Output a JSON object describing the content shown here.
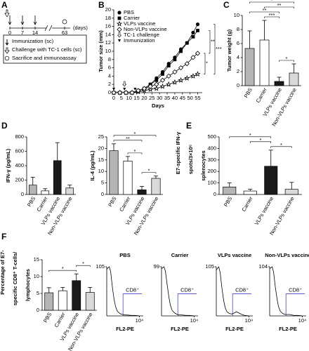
{
  "panel_labels": [
    "A",
    "B",
    "C",
    "D",
    "E",
    "F"
  ],
  "schedule": {
    "days": [
      0,
      7,
      14,
      63
    ],
    "unit": "(days)",
    "legend": [
      "Immunization (sc)",
      "Challenge with TC-1 cells (sc)",
      "Sacrifice and immunoassay"
    ]
  },
  "chart_data": [
    {
      "type": "line",
      "ylabel": [
        "Tumor size (mm)"
      ],
      "xlabel": "Days",
      "x": [
        0,
        4,
        8,
        12,
        16,
        20,
        24,
        28,
        32,
        36,
        40,
        44,
        48,
        52,
        55
      ],
      "xlim": [
        0,
        58
      ],
      "xticks": [
        0,
        5,
        10,
        15,
        20,
        25,
        30,
        35,
        40,
        45,
        50,
        55
      ],
      "ylim": [
        0,
        20
      ],
      "yticks": [
        0,
        2,
        4,
        6,
        8,
        10,
        12,
        14,
        16,
        18,
        20
      ],
      "series": [
        {
          "name": "PBS",
          "color": "#000000",
          "marker": "circle",
          "values": [
            0,
            0,
            0,
            0,
            0.5,
            1,
            2,
            3.5,
            5,
            7,
            8.5,
            10.5,
            12,
            14.5,
            16.5
          ]
        },
        {
          "name": "Carrier",
          "color": "#000000",
          "marker": "square",
          "values": [
            0,
            0,
            0,
            0,
            0.5,
            1,
            2,
            3,
            4.5,
            6.5,
            8,
            10,
            12,
            13.5,
            15
          ]
        },
        {
          "name": "VLPs vaccine",
          "color": "#000000",
          "marker": "star",
          "values": [
            0,
            0,
            0,
            0,
            0.2,
            0.5,
            0.8,
            1,
            1.5,
            2,
            2.5,
            3,
            3.5,
            4,
            4.5
          ]
        },
        {
          "name": "Non-VLPs vaccine",
          "color": "#000000",
          "marker": "diamond",
          "values": [
            0,
            0,
            0,
            0,
            0.5,
            1,
            1.5,
            2,
            3,
            4,
            5,
            6,
            7,
            8.5,
            9.5
          ]
        }
      ],
      "events": [
        {
          "name": "TC-1 challenge",
          "marker": "open-arrow",
          "days": [
            7
          ]
        },
        {
          "name": "Immunization",
          "marker": "arrow",
          "days": [
            0,
            7,
            14
          ]
        }
      ],
      "significance": [
        {
          "label": "*",
          "pair": [
            "Non-VLPs vaccine",
            "VLPs vaccine"
          ]
        },
        {
          "label": "**",
          "pair": [
            "Carrier",
            "Non-VLPs vaccine"
          ]
        },
        {
          "label": "***",
          "pair": [
            "PBS",
            "VLPs vaccine"
          ]
        }
      ]
    },
    {
      "type": "bar",
      "ylabel": [
        "Tumor weight (g)"
      ],
      "categories": [
        "PBS",
        "Carrier",
        "VLPs vaccine",
        "Non-VLPs vaccine"
      ],
      "colors": [
        "#b5b5b5",
        "#ffffff",
        "#1a1a1a",
        "#d9d9d9"
      ],
      "values": [
        5.3,
        6.5,
        0.6,
        1.8
      ],
      "errors": [
        2.5,
        2.8,
        0.6,
        1.3
      ],
      "ylim": [
        0,
        10
      ],
      "yticks": [
        0,
        2,
        4,
        6,
        8,
        10
      ],
      "significance": [
        {
          "label": "*",
          "pair": [
            "VLPs vaccine",
            "Non-VLPs vaccine"
          ]
        },
        {
          "label": "***",
          "pair": [
            "Carrier",
            "VLPs vaccine"
          ]
        },
        {
          "label": "**",
          "pair": [
            "PBS",
            "VLPs vaccine"
          ]
        },
        {
          "label": "**",
          "pair": [
            "Carrier",
            "Non-VLPs vaccine"
          ]
        },
        {
          "label": "*",
          "pair": [
            "PBS",
            "Non-VLPs vaccine"
          ]
        }
      ]
    },
    {
      "type": "bar",
      "ylabel": [
        "IFN-γ (pg/mL)"
      ],
      "categories": [
        "PBS",
        "Carrier",
        "VLPs vaccine",
        "Non-VLPs vaccine"
      ],
      "colors": [
        "#b5b5b5",
        "#ffffff",
        "#1a1a1a",
        "#d9d9d9"
      ],
      "values": [
        130,
        50,
        470,
        90
      ],
      "errors": [
        110,
        30,
        250,
        40
      ],
      "ylim": [
        0,
        800
      ],
      "yticks": [
        0,
        200,
        400,
        600,
        800
      ],
      "significance": []
    },
    {
      "type": "bar",
      "ylabel": [
        "IL-4 (pg/mL)"
      ],
      "categories": [
        "PBS",
        "Carrier",
        "VLPs vaccine",
        "Non-VLPs vaccine"
      ],
      "colors": [
        "#b5b5b5",
        "#ffffff",
        "#1a1a1a",
        "#d9d9d9"
      ],
      "values": [
        19,
        14.5,
        2,
        7
      ],
      "errors": [
        3,
        2,
        1.5,
        1
      ],
      "ylim": [
        0,
        25
      ],
      "yticks": [
        0,
        5,
        10,
        15,
        20,
        25
      ],
      "significance": [
        {
          "label": "*",
          "pair": [
            "VLPs vaccine",
            "Non-VLPs vaccine"
          ]
        },
        {
          "label": "*",
          "pair": [
            "Carrier",
            "VLPs vaccine"
          ]
        },
        {
          "label": "**",
          "pair": [
            "PBS",
            "VLPs vaccine"
          ]
        },
        {
          "label": "*",
          "pair": [
            "PBS",
            "Non-VLPs vaccine"
          ]
        }
      ]
    },
    {
      "type": "bar",
      "ylabel": [
        "E7-specific IFN-γ",
        "spots/3×10⁵",
        "splenocytes"
      ],
      "categories": [
        "PBS",
        "Carrier",
        "VLPs vaccine",
        "Non-VLPs vaccine"
      ],
      "colors": [
        "#b5b5b5",
        "#ffffff",
        "#1a1a1a",
        "#d9d9d9"
      ],
      "values": [
        65,
        30,
        245,
        45
      ],
      "errors": [
        35,
        15,
        140,
        60
      ],
      "ylim": [
        0,
        500
      ],
      "yticks": [
        0,
        100,
        200,
        300,
        400,
        500
      ],
      "significance": [
        {
          "label": "*",
          "pair": [
            "VLPs vaccine",
            "Non-VLPs vaccine"
          ]
        },
        {
          "label": "*",
          "pair": [
            "Carrier",
            "VLPs vaccine"
          ]
        },
        {
          "label": "*",
          "pair": [
            "PBS",
            "VLPs vaccine"
          ]
        }
      ]
    },
    {
      "type": "bar",
      "ylabel": [
        "Percentage of E7-",
        "specific CD8⁺ T-cells/",
        "lymphocytes"
      ],
      "categories": [
        "PBS",
        "Carrier",
        "VLPs vaccine",
        "Non-VLPs vaccine"
      ],
      "colors": [
        "#b5b5b5",
        "#ffffff",
        "#1a1a1a",
        "#d9d9d9"
      ],
      "values": [
        5.2,
        5.8,
        8.8,
        5.3
      ],
      "errors": [
        1.5,
        1,
        2,
        1.5
      ],
      "ylim": [
        0,
        15
      ],
      "yticks": [
        0,
        5,
        10,
        15
      ],
      "significance": [
        {
          "label": "*",
          "pair": [
            "PBS",
            "VLPs vaccine"
          ]
        },
        {
          "label": "*",
          "pair": [
            "VLPs vaccine",
            "Non-VLPs vaccine"
          ]
        }
      ]
    },
    {
      "type": "flow",
      "title": "PBS",
      "color": "#000000",
      "log_x": true,
      "x": [
        1,
        2,
        3,
        5,
        8,
        12,
        20,
        40,
        80,
        150,
        300,
        1000,
        3000,
        10000
      ],
      "values": [
        100,
        105,
        95,
        60,
        35,
        20,
        10,
        5,
        3,
        2,
        2,
        1,
        1,
        0
      ],
      "xlim": [
        1,
        30000
      ],
      "ylim": [
        0,
        105
      ],
      "yticks": [
        105
      ],
      "xticks": [
        {
          "value": 10000,
          "label": "10⁴"
        }
      ],
      "xlabel": "FL2-PE",
      "gate": {
        "label": "CD8⁺",
        "range": [
          100,
          20000
        ],
        "color": "#5b5bd6"
      }
    },
    {
      "type": "flow",
      "title": "Carrier",
      "color": "#000000",
      "log_x": true,
      "x": [
        1,
        2,
        3,
        5,
        8,
        12,
        20,
        40,
        80,
        150,
        300,
        1000,
        3000,
        10000
      ],
      "values": [
        95,
        99,
        90,
        62,
        38,
        22,
        11,
        6,
        3,
        2,
        2,
        1,
        1,
        0
      ],
      "xlim": [
        1,
        30000
      ],
      "ylim": [
        0,
        99
      ],
      "yticks": [
        99
      ],
      "xticks": [
        {
          "value": 10000,
          "label": "10⁴"
        }
      ],
      "xlabel": "FL2-PE",
      "gate": {
        "label": "CD8⁺",
        "range": [
          100,
          20000
        ],
        "color": "#5b5bd6"
      }
    },
    {
      "type": "flow",
      "title": "VLPs vaccine",
      "color": "#000000",
      "log_x": true,
      "x": [
        1,
        2,
        3,
        5,
        8,
        12,
        20,
        40,
        80,
        150,
        300,
        1000,
        3000,
        10000
      ],
      "values": [
        98,
        105,
        92,
        58,
        33,
        18,
        9,
        5,
        4,
        6,
        9,
        4,
        1,
        0
      ],
      "xlim": [
        1,
        30000
      ],
      "ylim": [
        0,
        105
      ],
      "yticks": [
        105
      ],
      "xticks": [
        {
          "value": 10000,
          "label": "10⁴"
        }
      ],
      "xlabel": "FL2-PE",
      "gate": {
        "label": "CD8⁺",
        "range": [
          100,
          20000
        ],
        "color": "#5b5bd6"
      }
    },
    {
      "type": "flow",
      "title": "Non-VLPs vaccine",
      "color": "#000000",
      "log_x": true,
      "x": [
        1,
        2,
        3,
        5,
        8,
        12,
        20,
        40,
        80,
        150,
        300,
        1000,
        3000,
        10000
      ],
      "values": [
        100,
        104,
        93,
        60,
        36,
        20,
        10,
        5,
        3,
        3,
        3,
        1,
        1,
        0
      ],
      "xlim": [
        1,
        30000
      ],
      "ylim": [
        0,
        104
      ],
      "yticks": [
        104
      ],
      "xticks": [
        {
          "value": 10000,
          "label": "10⁴"
        }
      ],
      "xlabel": "FL2-PE",
      "gate": {
        "label": "CD8⁺",
        "range": [
          100,
          20000
        ],
        "color": "#5b5bd6"
      }
    }
  ]
}
